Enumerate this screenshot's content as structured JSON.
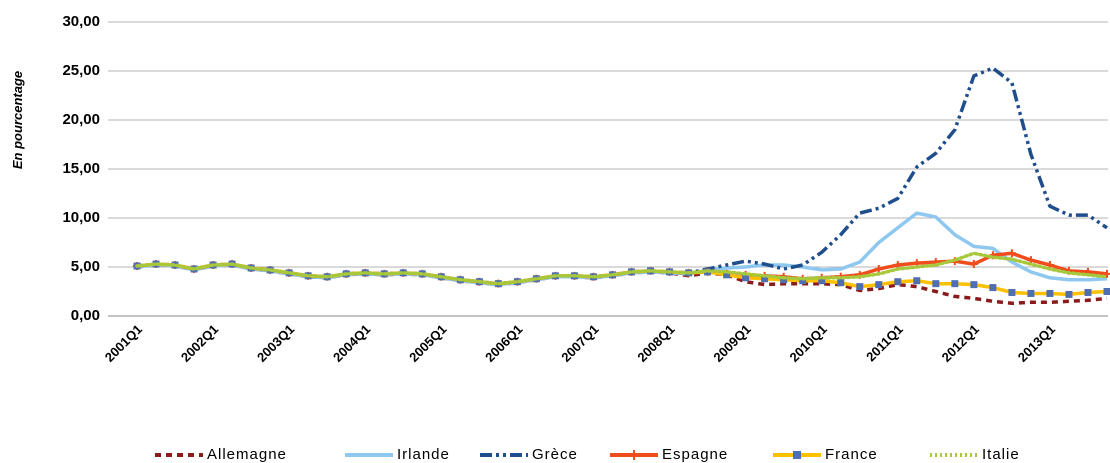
{
  "chart_data": {
    "type": "line",
    "y_label": "En pourcentage",
    "categories": [
      "2001Q1",
      null,
      null,
      null,
      "2002Q1",
      null,
      null,
      null,
      "2003Q1",
      null,
      null,
      null,
      "2004Q1",
      null,
      null,
      null,
      "2005Q1",
      null,
      null,
      null,
      "2006Q1",
      null,
      null,
      null,
      "2007Q1",
      null,
      null,
      null,
      "2008Q1",
      null,
      null,
      null,
      "2009Q1",
      null,
      null,
      null,
      "2010Q1",
      null,
      null,
      null,
      "2011Q1",
      null,
      null,
      null,
      "2012Q1",
      null,
      null,
      null,
      "2013Q1",
      null,
      null,
      null
    ],
    "ylim": [
      0,
      30
    ],
    "yticks": [
      {
        "value": 0,
        "label": "0,00"
      },
      {
        "value": 5,
        "label": "5,00"
      },
      {
        "value": 10,
        "label": "10,00"
      },
      {
        "value": 15,
        "label": "15,00"
      },
      {
        "value": 20,
        "label": "20,00"
      },
      {
        "value": 25,
        "label": "25,00"
      },
      {
        "value": 30,
        "label": "30,00"
      }
    ],
    "grid": true,
    "legend": "bottom",
    "series": [
      {
        "name": "Allemagne",
        "color": "#8b1a1a",
        "style": "dashed",
        "values": [
          5.0,
          5.2,
          5.1,
          4.7,
          5.1,
          5.2,
          4.8,
          4.6,
          4.3,
          4.0,
          3.9,
          4.2,
          4.3,
          4.2,
          4.3,
          4.2,
          3.9,
          3.6,
          3.4,
          3.2,
          3.4,
          3.7,
          4.0,
          4.0,
          3.9,
          4.1,
          4.4,
          4.5,
          4.4,
          4.1,
          4.4,
          4.2,
          3.5,
          3.2,
          3.3,
          3.3,
          3.3,
          3.2,
          2.6,
          2.8,
          3.2,
          3.0,
          2.5,
          2.0,
          1.8,
          1.5,
          1.3,
          1.4,
          1.4,
          1.5,
          1.6,
          1.8
        ]
      },
      {
        "name": "Irlande",
        "color": "#8ec8f0",
        "style": "solid",
        "values": [
          5.0,
          5.2,
          5.1,
          4.7,
          5.1,
          5.2,
          4.8,
          4.6,
          4.3,
          4.0,
          3.9,
          4.2,
          4.3,
          4.2,
          4.3,
          4.2,
          3.9,
          3.6,
          3.4,
          3.2,
          3.4,
          3.7,
          4.0,
          4.0,
          3.9,
          4.1,
          4.4,
          4.5,
          4.4,
          4.3,
          4.7,
          4.9,
          5.0,
          5.2,
          5.2,
          5.0,
          4.7,
          4.8,
          5.5,
          7.5,
          9.0,
          10.5,
          10.1,
          8.3,
          7.1,
          6.9,
          5.5,
          4.5,
          3.9,
          3.7,
          3.7,
          3.8
        ]
      },
      {
        "name": "Grèce",
        "color": "#1f4e8c",
        "style": "dashdot",
        "values": [
          5.1,
          5.3,
          5.2,
          4.8,
          5.2,
          5.3,
          4.9,
          4.7,
          4.4,
          4.1,
          4.0,
          4.3,
          4.4,
          4.3,
          4.4,
          4.3,
          4.0,
          3.7,
          3.5,
          3.3,
          3.5,
          3.8,
          4.1,
          4.1,
          4.0,
          4.2,
          4.5,
          4.6,
          4.5,
          4.4,
          4.8,
          5.2,
          5.6,
          5.3,
          4.8,
          5.2,
          6.5,
          8.3,
          10.5,
          11.0,
          12.0,
          15.2,
          16.6,
          19.0,
          24.5,
          25.3,
          23.8,
          16.5,
          11.2,
          10.3,
          10.3,
          9.0
        ]
      },
      {
        "name": "Espagne",
        "color": "#f04c1c",
        "style": "solid",
        "marker": "star",
        "values": [
          5.1,
          5.3,
          5.2,
          4.8,
          5.2,
          5.3,
          4.9,
          4.7,
          4.4,
          4.1,
          4.0,
          4.3,
          4.4,
          4.3,
          4.4,
          4.3,
          4.0,
          3.7,
          3.5,
          3.3,
          3.5,
          3.8,
          4.1,
          4.1,
          4.0,
          4.2,
          4.5,
          4.6,
          4.5,
          4.4,
          4.5,
          4.3,
          4.2,
          4.1,
          4.0,
          3.8,
          3.9,
          4.0,
          4.2,
          4.8,
          5.2,
          5.4,
          5.5,
          5.6,
          5.3,
          6.2,
          6.4,
          5.7,
          5.2,
          4.6,
          4.5,
          4.3
        ]
      },
      {
        "name": "France",
        "color": "#ffc000",
        "style": "solid",
        "marker": "square",
        "marker_color": "#4f6fb0",
        "values": [
          5.1,
          5.3,
          5.2,
          4.8,
          5.2,
          5.3,
          4.9,
          4.7,
          4.4,
          4.1,
          4.0,
          4.3,
          4.4,
          4.3,
          4.4,
          4.3,
          4.0,
          3.7,
          3.5,
          3.3,
          3.5,
          3.8,
          4.1,
          4.1,
          4.0,
          4.2,
          4.5,
          4.6,
          4.5,
          4.4,
          4.5,
          4.2,
          3.9,
          3.8,
          3.7,
          3.6,
          3.6,
          3.4,
          3.0,
          3.2,
          3.5,
          3.6,
          3.3,
          3.3,
          3.2,
          2.9,
          2.4,
          2.3,
          2.3,
          2.2,
          2.4,
          2.5
        ]
      },
      {
        "name": "Italie",
        "color": "#a8c83c",
        "style": "dotted",
        "values": [
          5.1,
          5.3,
          5.2,
          4.8,
          5.2,
          5.3,
          4.9,
          4.7,
          4.4,
          4.1,
          4.0,
          4.3,
          4.4,
          4.3,
          4.4,
          4.3,
          4.0,
          3.7,
          3.5,
          3.3,
          3.5,
          3.8,
          4.1,
          4.1,
          4.0,
          4.2,
          4.5,
          4.6,
          4.5,
          4.4,
          4.6,
          4.5,
          4.3,
          4.1,
          3.9,
          3.8,
          3.9,
          3.9,
          4.0,
          4.3,
          4.8,
          5.0,
          5.2,
          5.7,
          6.4,
          6.0,
          5.8,
          5.3,
          4.8,
          4.4,
          4.2,
          4.0
        ]
      }
    ]
  }
}
